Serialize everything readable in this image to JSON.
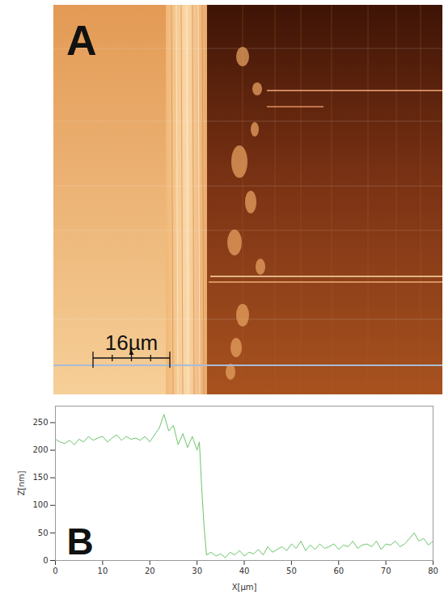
{
  "figure": {
    "panel_a": {
      "letter": "A",
      "scale_bar": "16µm"
    },
    "panel_b_letter": "B"
  },
  "chart_data": {
    "type": "line",
    "xlabel": "X[µm]",
    "ylabel": "Z[nm]",
    "x": [
      0,
      1,
      2,
      3,
      4,
      5,
      6,
      7,
      8,
      9,
      10,
      11,
      12,
      13,
      14,
      15,
      16,
      17,
      18,
      19,
      20,
      21,
      22,
      23,
      24,
      25,
      26,
      27,
      28,
      29,
      30,
      30.5,
      31,
      31.5,
      32,
      33,
      34,
      35,
      36,
      37,
      38,
      39,
      40,
      41,
      42,
      43,
      44,
      45,
      46,
      47,
      48,
      49,
      50,
      51,
      52,
      53,
      54,
      55,
      56,
      57,
      58,
      59,
      60,
      61,
      62,
      63,
      64,
      65,
      66,
      67,
      68,
      69,
      70,
      71,
      72,
      73,
      74,
      75,
      76,
      77,
      78,
      79,
      80
    ],
    "values": [
      220,
      215,
      212,
      218,
      210,
      220,
      215,
      225,
      218,
      222,
      225,
      215,
      222,
      228,
      218,
      225,
      220,
      222,
      218,
      225,
      215,
      228,
      240,
      265,
      235,
      245,
      210,
      230,
      205,
      225,
      200,
      215,
      130,
      60,
      10,
      15,
      8,
      12,
      5,
      15,
      10,
      18,
      8,
      15,
      12,
      20,
      10,
      25,
      15,
      20,
      25,
      18,
      30,
      22,
      35,
      18,
      28,
      20,
      30,
      22,
      25,
      30,
      20,
      28,
      25,
      35,
      22,
      28,
      30,
      25,
      35,
      20,
      30,
      28,
      35,
      25,
      30,
      40,
      50,
      35,
      40,
      28,
      35
    ],
    "color": "#6cc46c",
    "xlim": [
      0,
      80
    ],
    "xticks": [
      0,
      10,
      20,
      30,
      40,
      50,
      60,
      70,
      80
    ],
    "ylim": [
      0,
      280
    ],
    "yticks": [
      0,
      50,
      100,
      150,
      200,
      250
    ]
  }
}
